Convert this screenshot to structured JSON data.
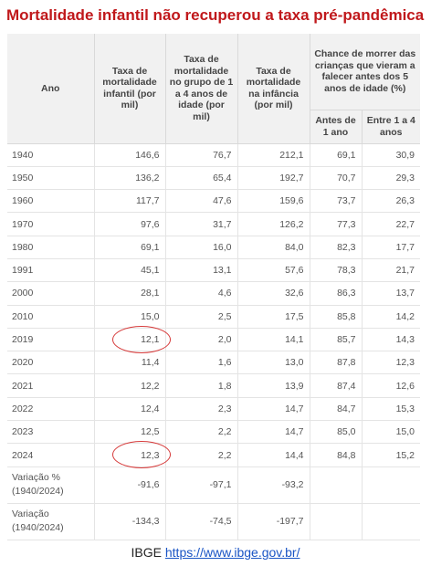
{
  "title": "Mortalidade infantil não recuperou a taxa pré-pandêmica",
  "headers": {
    "ano": "Ano",
    "col1": "Taxa de mortalidade infantil (por mil)",
    "col2": "Taxa de mortalidade no grupo de 1 a 4 anos de idade (por mil)",
    "col3": "Taxa de mortalidade na infância (por mil)",
    "group": "Chance de morrer das crianças que vieram a falecer antes dos 5 anos de idade (%)",
    "sub1": "Antes de 1 ano",
    "sub2": "Entre 1 a 4 anos"
  },
  "rows": [
    {
      "ano": "1940",
      "infantil": "146,6",
      "um_a_quatro": "76,7",
      "infancia": "212,1",
      "antes1": "69,1",
      "entre1e4": "30,9"
    },
    {
      "ano": "1950",
      "infantil": "136,2",
      "um_a_quatro": "65,4",
      "infancia": "192,7",
      "antes1": "70,7",
      "entre1e4": "29,3"
    },
    {
      "ano": "1960",
      "infantil": "117,7",
      "um_a_quatro": "47,6",
      "infancia": "159,6",
      "antes1": "73,7",
      "entre1e4": "26,3"
    },
    {
      "ano": "1970",
      "infantil": "97,6",
      "um_a_quatro": "31,7",
      "infancia": "126,2",
      "antes1": "77,3",
      "entre1e4": "22,7"
    },
    {
      "ano": "1980",
      "infantil": "69,1",
      "um_a_quatro": "16,0",
      "infancia": "84,0",
      "antes1": "82,3",
      "entre1e4": "17,7"
    },
    {
      "ano": "1991",
      "infantil": "45,1",
      "um_a_quatro": "13,1",
      "infancia": "57,6",
      "antes1": "78,3",
      "entre1e4": "21,7"
    },
    {
      "ano": "2000",
      "infantil": "28,1",
      "um_a_quatro": "4,6",
      "infancia": "32,6",
      "antes1": "86,3",
      "entre1e4": "13,7"
    },
    {
      "ano": "2010",
      "infantil": "15,0",
      "um_a_quatro": "2,5",
      "infancia": "17,5",
      "antes1": "85,8",
      "entre1e4": "14,2"
    },
    {
      "ano": "2019",
      "infantil": "12,1",
      "um_a_quatro": "2,0",
      "infancia": "14,1",
      "antes1": "85,7",
      "entre1e4": "14,3",
      "highlight": true
    },
    {
      "ano": "2020",
      "infantil": "11,4",
      "um_a_quatro": "1,6",
      "infancia": "13,0",
      "antes1": "87,8",
      "entre1e4": "12,3"
    },
    {
      "ano": "2021",
      "infantil": "12,2",
      "um_a_quatro": "1,8",
      "infancia": "13,9",
      "antes1": "87,4",
      "entre1e4": "12,6"
    },
    {
      "ano": "2022",
      "infantil": "12,4",
      "um_a_quatro": "2,3",
      "infancia": "14,7",
      "antes1": "84,7",
      "entre1e4": "15,3"
    },
    {
      "ano": "2023",
      "infantil": "12,5",
      "um_a_quatro": "2,2",
      "infancia": "14,7",
      "antes1": "85,0",
      "entre1e4": "15,0"
    },
    {
      "ano": "2024",
      "infantil": "12,3",
      "um_a_quatro": "2,2",
      "infancia": "14,4",
      "antes1": "84,8",
      "entre1e4": "15,2",
      "highlight": true
    }
  ],
  "variation_rows": [
    {
      "label": "Variação % (1940/2024)",
      "infantil": "-91,6",
      "um_a_quatro": "-97,1",
      "infancia": "-93,2"
    },
    {
      "label": "Variação (1940/2024)",
      "infantil": "-134,3",
      "um_a_quatro": "-74,5",
      "infancia": "-197,7"
    }
  ],
  "footer": {
    "source": "IBGE",
    "link": "https://www.ibge.gov.br/"
  },
  "colors": {
    "title": "#c0181b",
    "highlight_ring": "#d63a3a",
    "header_bg": "#f1f1f1",
    "link": "#1a55c5"
  }
}
